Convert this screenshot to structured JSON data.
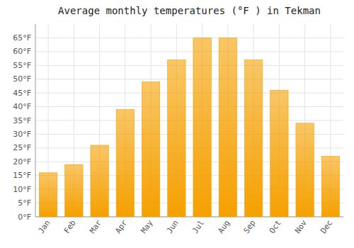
{
  "chart_data": {
    "type": "bar",
    "title": "Average monthly temperatures (°F ) in Tekman",
    "categories": [
      "Jan",
      "Feb",
      "Mar",
      "Apr",
      "May",
      "Jun",
      "Jul",
      "Aug",
      "Sep",
      "Oct",
      "Nov",
      "Dec"
    ],
    "values": [
      16,
      19,
      26,
      39,
      49,
      57,
      65,
      65,
      57,
      46,
      34,
      22
    ],
    "color": "#F5A000",
    "ylim": [
      0,
      70
    ],
    "yticks": [
      {
        "value": 0,
        "label": "0°F"
      },
      {
        "value": 5,
        "label": "5°F"
      },
      {
        "value": 10,
        "label": "10°F"
      },
      {
        "value": 15,
        "label": "15°F"
      },
      {
        "value": 20,
        "label": "20°F"
      },
      {
        "value": 25,
        "label": "25°F"
      },
      {
        "value": 30,
        "label": "30°F"
      },
      {
        "value": 35,
        "label": "35°F"
      },
      {
        "value": 40,
        "label": "40°F"
      },
      {
        "value": 45,
        "label": "45°F"
      },
      {
        "value": 50,
        "label": "50°F"
      },
      {
        "value": 55,
        "label": "55°F"
      },
      {
        "value": 60,
        "label": "60°F"
      },
      {
        "value": 65,
        "label": "65°F"
      }
    ],
    "grid": true
  }
}
